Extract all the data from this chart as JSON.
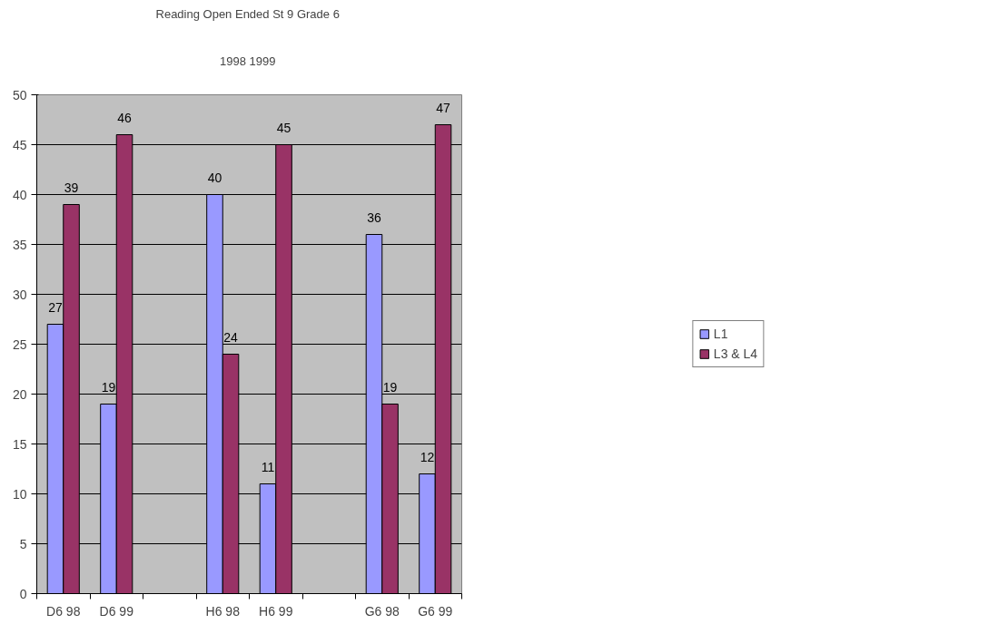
{
  "chart_data": {
    "type": "bar",
    "title": "Reading Open Ended St 9  Grade 6",
    "subtitle": "1998  1999",
    "categories": [
      "D6 98",
      "D6 99",
      null,
      "H6 98",
      "H6 99",
      null,
      "G6 98",
      "G6 99"
    ],
    "series": [
      {
        "name": "L1",
        "color": "#9999ff",
        "values": [
          27,
          19,
          null,
          40,
          11,
          null,
          36,
          12
        ]
      },
      {
        "name": "L3 & L4",
        "color": "#993366",
        "values": [
          39,
          46,
          null,
          24,
          45,
          null,
          19,
          47
        ]
      }
    ],
    "ylim": [
      0,
      50
    ],
    "yticks": [
      0,
      5,
      10,
      15,
      20,
      25,
      30,
      35,
      40,
      45,
      50
    ],
    "grid": "y",
    "legend": "right",
    "data_labels": true
  }
}
